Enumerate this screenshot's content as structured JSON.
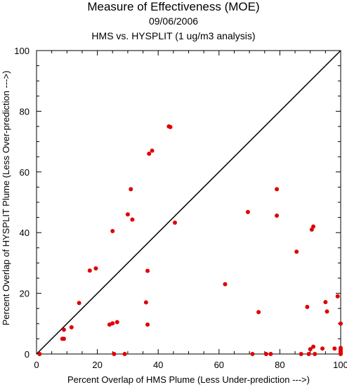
{
  "title": "Measure of Effectiveness (MOE)",
  "date": "09/06/2006",
  "subtitle": "HMS vs. HYSPLIT  (1 ug/m3 analysis)",
  "chart_data": {
    "type": "scatter",
    "xlabel": "Percent Overlap of HMS Plume (Less Under-prediction --->)",
    "ylabel": "Percent Overlap of HYSPLIT Plume (Less Over-prediction --->)",
    "xlim": [
      0,
      100
    ],
    "ylim": [
      0,
      100
    ],
    "xticks": [
      0,
      20,
      40,
      60,
      80,
      100
    ],
    "yticks": [
      0,
      20,
      40,
      60,
      80,
      100
    ],
    "reference_line": "y = x",
    "point_color": "#e00000",
    "points": [
      [
        1,
        0
      ],
      [
        8.5,
        5
      ],
      [
        9,
        5
      ],
      [
        9,
        8
      ],
      [
        11.5,
        8.8
      ],
      [
        14,
        16.8
      ],
      [
        17.5,
        27.5
      ],
      [
        19.5,
        28.2
      ],
      [
        24,
        9.7
      ],
      [
        25,
        40.5
      ],
      [
        25,
        10.1
      ],
      [
        25.5,
        0
      ],
      [
        26.5,
        10.5
      ],
      [
        29,
        0
      ],
      [
        30,
        46
      ],
      [
        31,
        54.3
      ],
      [
        31.5,
        44.3
      ],
      [
        36,
        17
      ],
      [
        36.5,
        27.4
      ],
      [
        36.5,
        9.7
      ],
      [
        37,
        66
      ],
      [
        38,
        67
      ],
      [
        43.5,
        75
      ],
      [
        44,
        74.8
      ],
      [
        45.5,
        43.3
      ],
      [
        62,
        23
      ],
      [
        69.5,
        46.8
      ],
      [
        71,
        0
      ],
      [
        73,
        13.8
      ],
      [
        75.5,
        0
      ],
      [
        77,
        0
      ],
      [
        79,
        54.3
      ],
      [
        79,
        45.6
      ],
      [
        85.5,
        33.7
      ],
      [
        87,
        0
      ],
      [
        89,
        15.5
      ],
      [
        89.5,
        0
      ],
      [
        90,
        1.6
      ],
      [
        90.5,
        41
      ],
      [
        91,
        2.4
      ],
      [
        91,
        42
      ],
      [
        91.5,
        0
      ],
      [
        94,
        1.8
      ],
      [
        95,
        17.1
      ],
      [
        95.5,
        14
      ],
      [
        98,
        1.8
      ],
      [
        99,
        19
      ],
      [
        100,
        0
      ],
      [
        100,
        0.5
      ],
      [
        100,
        1
      ],
      [
        100,
        1.5
      ],
      [
        100,
        2
      ],
      [
        100,
        10
      ]
    ]
  }
}
